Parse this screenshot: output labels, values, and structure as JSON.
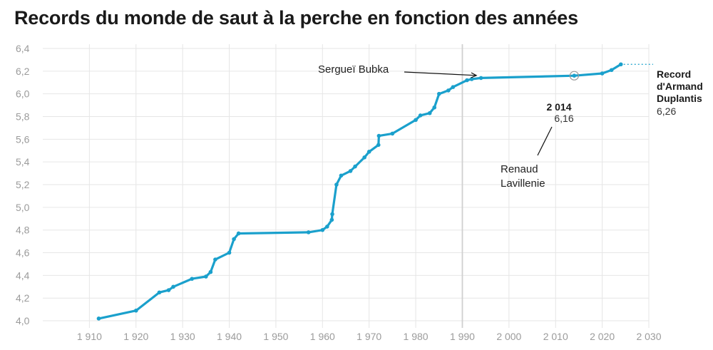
{
  "title": "Records du monde de saut à la perche en fonction des années",
  "colors": {
    "line": "#1aa0cc",
    "grid": "#e6e6e6",
    "highlight_grid": "#d0d0d0",
    "tick": "#9b9b9b"
  },
  "chart_data": {
    "type": "line",
    "title": "Records du monde de saut à la perche en fonction des années",
    "xlabel": "",
    "ylabel": "",
    "xlim": [
      1900,
      2030
    ],
    "ylim": [
      3.95,
      6.4
    ],
    "grid": true,
    "x_ticks": [
      1910,
      1920,
      1930,
      1940,
      1950,
      1960,
      1970,
      1980,
      1990,
      2000,
      2010,
      2020,
      2030
    ],
    "x_tick_labels": [
      "1 910",
      "1 920",
      "1 930",
      "1 940",
      "1 950",
      "1 960",
      "1 970",
      "1 980",
      "1 990",
      "2 000",
      "2 010",
      "2 020",
      "2 030"
    ],
    "y_ticks": [
      4.0,
      4.2,
      4.4,
      4.6,
      4.8,
      5.0,
      5.2,
      5.4,
      5.6,
      5.8,
      6.0,
      6.2,
      6.4
    ],
    "y_tick_labels": [
      "4,0",
      "4,2",
      "4,4",
      "4,6",
      "4,8",
      "5,0",
      "5,2",
      "5,4",
      "5,6",
      "5,8",
      "6,0",
      "6,2",
      "6,4"
    ],
    "highlight_x": 1990,
    "series": [
      {
        "points": [
          [
            1912,
            4.02
          ],
          [
            1920,
            4.09
          ],
          [
            1925,
            4.25
          ],
          [
            1927,
            4.27
          ],
          [
            1928,
            4.3
          ],
          [
            1932,
            4.37
          ],
          [
            1935,
            4.39
          ],
          [
            1936,
            4.43
          ],
          [
            1937,
            4.54
          ],
          [
            1940,
            4.6
          ],
          [
            1941,
            4.72
          ],
          [
            1942,
            4.77
          ],
          [
            1957,
            4.78
          ],
          [
            1960,
            4.8
          ],
          [
            1961,
            4.83
          ],
          [
            1962,
            4.89
          ],
          [
            1962.1,
            4.94
          ],
          [
            1963,
            5.2
          ],
          [
            1964,
            5.28
          ],
          [
            1966,
            5.32
          ],
          [
            1967,
            5.36
          ],
          [
            1969,
            5.44
          ],
          [
            1970,
            5.49
          ],
          [
            1972,
            5.55
          ],
          [
            1972.1,
            5.63
          ],
          [
            1975,
            5.65
          ],
          [
            1980,
            5.77
          ],
          [
            1981,
            5.81
          ],
          [
            1983,
            5.83
          ],
          [
            1984,
            5.88
          ],
          [
            1985,
            6.0
          ],
          [
            1987,
            6.03
          ],
          [
            1988,
            6.06
          ],
          [
            1991,
            6.12
          ],
          [
            1992,
            6.13
          ],
          [
            1994,
            6.14
          ],
          [
            2014,
            6.16
          ],
          [
            2020,
            6.18
          ],
          [
            2022,
            6.21
          ],
          [
            2024,
            6.26
          ]
        ]
      }
    ],
    "annotations": [
      {
        "label": "Sergueï Bubka",
        "x": 1993
      },
      {
        "label_line1": "Renaud",
        "label_line2": "Lavillenie",
        "year_label": "2 014",
        "value_label": "6,16",
        "x": 2014,
        "y": 6.16
      },
      {
        "label_line1": "Record",
        "label_line2": "d'Armand",
        "label_line3": "Duplantis",
        "value_label": "6,26",
        "x": 2024,
        "y": 6.26
      }
    ]
  }
}
